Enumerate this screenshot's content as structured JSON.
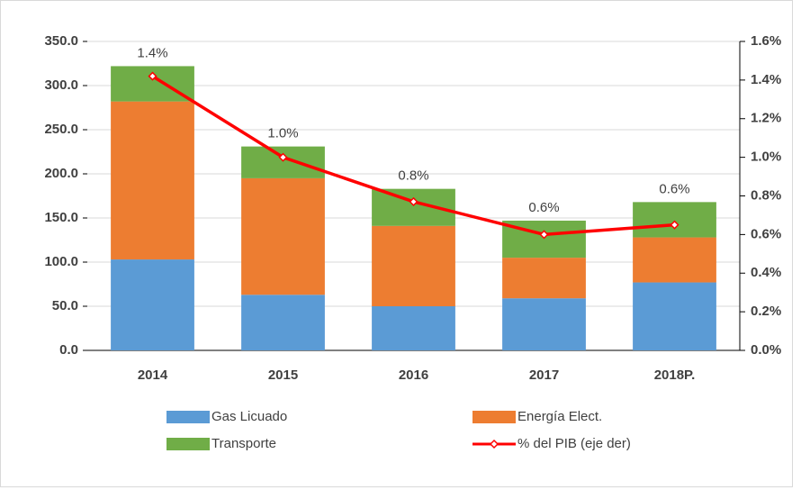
{
  "chart_data": {
    "type": "bar",
    "categories": [
      "2014",
      "2015",
      "2016",
      "2017",
      "2018P."
    ],
    "stacked": true,
    "series": [
      {
        "name": "Gas Licuado",
        "color": "#5b9bd5",
        "values": [
          103,
          63,
          50,
          59,
          77
        ]
      },
      {
        "name": "Energía Elect.",
        "color": "#ed7d31",
        "values": [
          179,
          132,
          91,
          46,
          51
        ]
      },
      {
        "name": "Transporte",
        "color": "#70ad47",
        "values": [
          40,
          36,
          42,
          42,
          40
        ]
      },
      {
        "name": "% del PIB (eje der)",
        "color": "#ff0000",
        "type": "line",
        "axis": "y2",
        "values": [
          1.42,
          1.0,
          0.77,
          0.6,
          0.65
        ],
        "value_labels": [
          "1.4%",
          "1.0%",
          "0.8%",
          "0.6%",
          "0.6%"
        ]
      }
    ],
    "ylim": [
      0,
      350
    ],
    "yticks": [
      {
        "value": 0,
        "label": "0.0"
      },
      {
        "value": 50,
        "label": "50.0"
      },
      {
        "value": 100,
        "label": "100.0"
      },
      {
        "value": 150,
        "label": "150.0"
      },
      {
        "value": 200,
        "label": "200.0"
      },
      {
        "value": 250,
        "label": "250.0"
      },
      {
        "value": 300,
        "label": "300.0"
      },
      {
        "value": 350,
        "label": "350.0"
      }
    ],
    "y2lim": [
      0,
      1.6
    ],
    "y2ticks": [
      {
        "value": 0,
        "label": "0.0%"
      },
      {
        "value": 0.2,
        "label": "0.2%"
      },
      {
        "value": 0.4,
        "label": "0.4%"
      },
      {
        "value": 0.6,
        "label": "0.6%"
      },
      {
        "value": 0.8,
        "label": "0.8%"
      },
      {
        "value": 1.0,
        "label": "1.0%"
      },
      {
        "value": 1.2,
        "label": "1.2%"
      },
      {
        "value": 1.4,
        "label": "1.4%"
      },
      {
        "value": 1.6,
        "label": "1.6%"
      }
    ],
    "grid": true,
    "legend": "bottom"
  }
}
